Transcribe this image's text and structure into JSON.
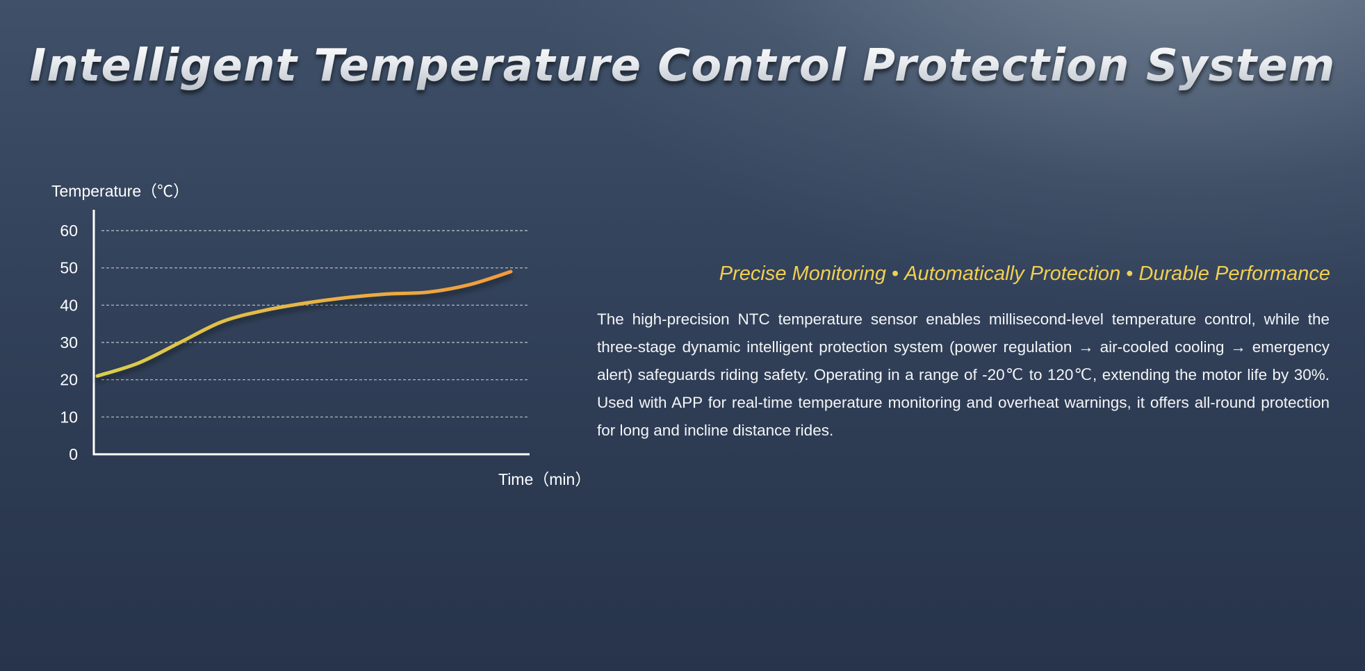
{
  "title": "Intelligent Temperature Control Protection System",
  "tagline": {
    "items": [
      "Precise Monitoring",
      "Automatically Protection",
      "Durable Performance"
    ],
    "separator": "•"
  },
  "description": "The high-precision NTC temperature sensor enables millisecond-level temperature control, while the three-stage dynamic intelligent protection system (power regulation → air-cooled cooling → emergency alert) safeguards riding safety. Operating in  a range of -20℃ to 120℃, extending the motor life by 30%. Used with APP for real-time temperature monitoring and overheat warnings, it offers all-round protection for long and incline distance rides.",
  "colors": {
    "tagline": "#f2cf52",
    "curve_start": "#d9cf4e",
    "curve_end": "#f39a3c",
    "axis": "#ffffff",
    "grid": "#d9dde3"
  },
  "chart_data": {
    "type": "line",
    "ylabel": "Temperature（℃）",
    "xlabel": "Time（min）",
    "yticks": [
      "0",
      "10",
      "20",
      "30",
      "40",
      "50",
      "60"
    ],
    "ylim": [
      0,
      60
    ],
    "grid": true,
    "x_ticks_shown": false,
    "series": [
      {
        "x": [
          0,
          1,
          2,
          3,
          4,
          5,
          6,
          7,
          8,
          9,
          10
        ],
        "values": [
          21,
          24.5,
          30,
          35.5,
          38.5,
          40.5,
          42,
          43,
          43.5,
          45.5,
          49
        ]
      }
    ]
  }
}
